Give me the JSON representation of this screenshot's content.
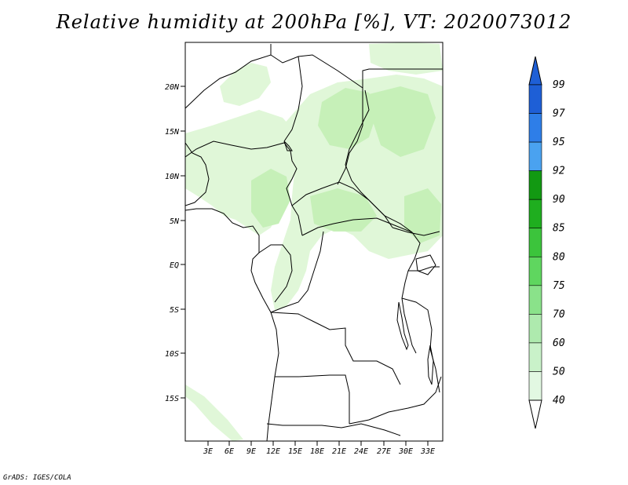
{
  "title": "Relative humidity at 200hPa [%], VT: 2020073012",
  "credit": "GrADS: IGES/COLA",
  "lat_labels": [
    "20N",
    "15N",
    "10N",
    "5N",
    "EQ",
    "5S",
    "10S",
    "15S"
  ],
  "lon_labels": [
    "3E",
    "6E",
    "9E",
    "12E",
    "15E",
    "18E",
    "21E",
    "24E",
    "27E",
    "30E",
    "33E"
  ],
  "colorbar": {
    "labels": [
      "99",
      "97",
      "95",
      "92",
      "90",
      "85",
      "80",
      "75",
      "70",
      "60",
      "50",
      "40"
    ],
    "colors": [
      "#1e5fd6",
      "#2e7ee8",
      "#4aa2f0",
      "#129912",
      "#1fae1f",
      "#3cc43c",
      "#5fd65f",
      "#8ae28a",
      "#aeeaae",
      "#c9f2c9",
      "#e2f8e2",
      "#f2fcf2"
    ]
  },
  "map_colors": {
    "light": "#e0f7d8",
    "mid": "#c6f0b8",
    "border": "#000000"
  }
}
